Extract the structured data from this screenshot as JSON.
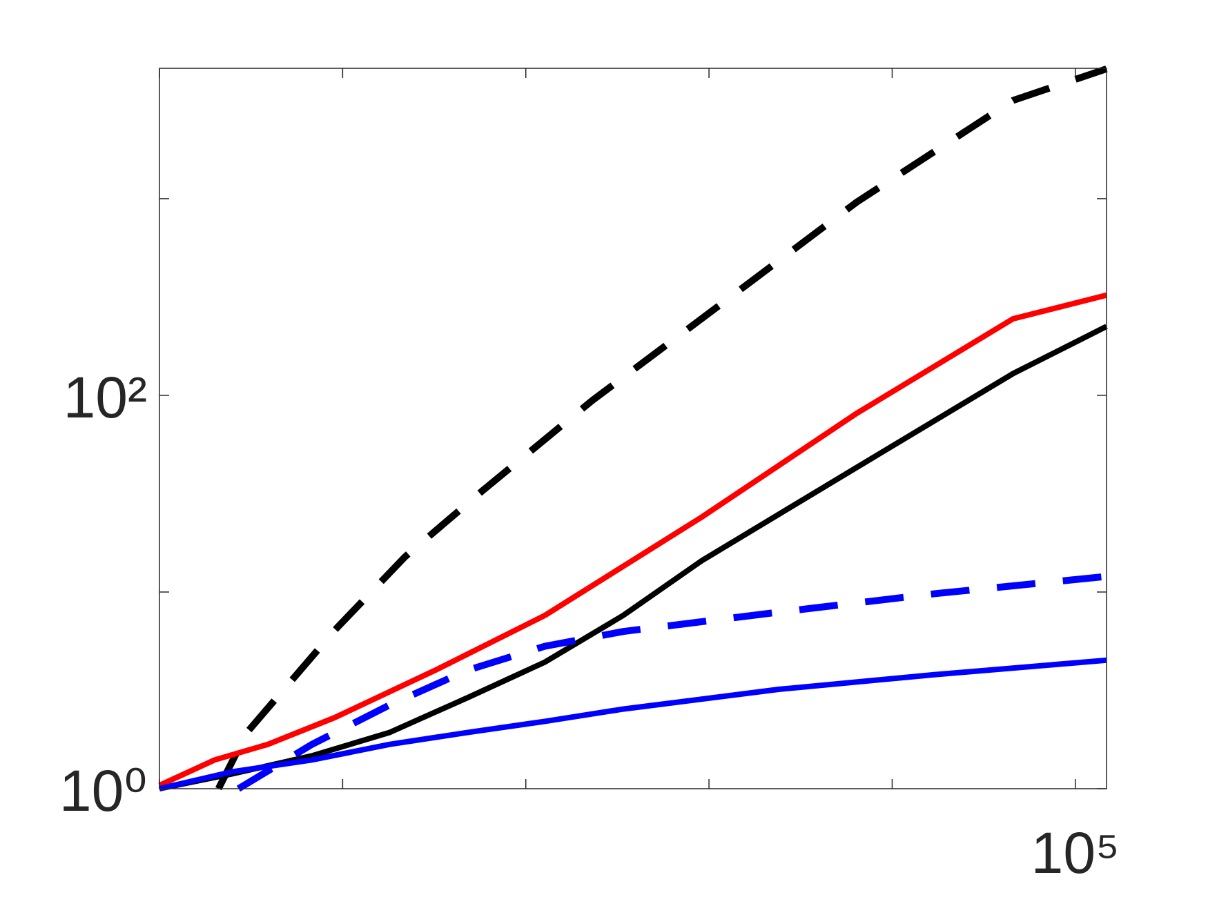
{
  "chart_data": {
    "type": "line",
    "log_x": true,
    "log_y": true,
    "box": true,
    "xlim": [
      1,
      148000
    ],
    "ylim": [
      1,
      4600
    ],
    "xticks": [
      {
        "value": 1,
        "label": null
      },
      {
        "value": 10,
        "label": null
      },
      {
        "value": 100,
        "label": null
      },
      {
        "value": 1000,
        "label": null
      },
      {
        "value": 10000,
        "label": null
      },
      {
        "value": 100000,
        "label": "10⁵"
      }
    ],
    "yticks": [
      {
        "value": 1,
        "label": "10⁰"
      },
      {
        "value": 10,
        "label": null
      },
      {
        "value": 100,
        "label": "10²"
      },
      {
        "value": 1000,
        "label": null
      }
    ],
    "series": [
      {
        "color": "#000000",
        "dash": true,
        "x": [
          2.1,
          3.0,
          9.06,
          21.9,
          58.6,
          230,
          910,
          6400,
          45700,
          148000
        ],
        "values": [
          1,
          1.93,
          6.4,
          15.1,
          33,
          94,
          245,
          960,
          3160,
          4570
        ]
      },
      {
        "color": "#ff0000",
        "dash": false,
        "x": [
          1,
          2,
          3.9,
          9.06,
          32,
          127,
          910,
          6400,
          45700,
          148000
        ],
        "values": [
          1.04,
          1.4,
          1.68,
          2.3,
          4,
          7.6,
          24,
          81,
          245,
          323
        ]
      },
      {
        "color": "#000000",
        "dash": false,
        "x": [
          1,
          2.5,
          6.8,
          18,
          48,
          127,
          340,
          910,
          6400,
          45700,
          148000
        ],
        "values": [
          1,
          1.19,
          1.47,
          1.93,
          2.9,
          4.4,
          7.6,
          14.4,
          43,
          129,
          224
        ]
      },
      {
        "color": "#0000ff",
        "dash": true,
        "x": [
          2.7,
          6.8,
          18,
          48,
          127,
          340,
          2400,
          17000,
          148000
        ],
        "values": [
          1,
          1.68,
          2.66,
          4,
          5.3,
          6.3,
          7.9,
          9.8,
          12
        ]
      },
      {
        "color": "#0000ff",
        "dash": false,
        "x": [
          1,
          2.5,
          6.8,
          18,
          48,
          127,
          340,
          2400,
          17000,
          148000
        ],
        "values": [
          1,
          1.22,
          1.4,
          1.68,
          1.93,
          2.2,
          2.54,
          3.2,
          3.8,
          4.5
        ]
      }
    ]
  }
}
